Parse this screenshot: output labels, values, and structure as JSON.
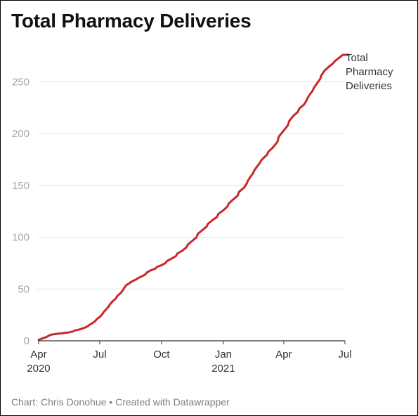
{
  "chart_data": {
    "type": "line",
    "title": "Total Pharmacy Deliveries",
    "xlabel": "",
    "ylabel": "",
    "ylim": [
      0,
      276
    ],
    "yticks": [
      0,
      50,
      100,
      150,
      200,
      250
    ],
    "grid": true,
    "legend_placement": "end-of-line label",
    "x_range": [
      "2020-03-31",
      "2021-07-01"
    ],
    "x_ticks": [
      {
        "date": "2020-04-01",
        "label": "Apr",
        "sub": "2020"
      },
      {
        "date": "2020-07-01",
        "label": "Jul",
        "sub": ""
      },
      {
        "date": "2020-10-01",
        "label": "Oct",
        "sub": ""
      },
      {
        "date": "2021-01-01",
        "label": "Jan",
        "sub": "2021"
      },
      {
        "date": "2021-04-01",
        "label": "Apr",
        "sub": ""
      },
      {
        "date": "2021-07-01",
        "label": "Jul",
        "sub": ""
      }
    ],
    "series": [
      {
        "name": "Total Pharmacy Deliveries",
        "color": "#c7282a",
        "x": [
          "2020-04-01",
          "2020-04-10",
          "2020-04-20",
          "2020-05-01",
          "2020-05-15",
          "2020-06-01",
          "2020-06-10",
          "2020-06-20",
          "2020-07-01",
          "2020-07-10",
          "2020-07-20",
          "2020-08-01",
          "2020-08-10",
          "2020-08-20",
          "2020-09-01",
          "2020-09-15",
          "2020-10-01",
          "2020-10-15",
          "2020-11-01",
          "2020-11-15",
          "2020-12-01",
          "2020-12-15",
          "2021-01-01",
          "2021-01-15",
          "2021-02-01",
          "2021-02-10",
          "2021-02-20",
          "2021-03-01",
          "2021-03-15",
          "2021-04-01",
          "2021-04-15",
          "2021-05-01",
          "2021-05-10",
          "2021-05-20",
          "2021-06-01",
          "2021-06-10",
          "2021-06-20",
          "2021-06-28"
        ],
        "values": [
          1,
          3,
          6,
          7,
          8,
          11,
          13,
          17,
          23,
          30,
          38,
          46,
          54,
          58,
          62,
          68,
          73,
          79,
          87,
          96,
          107,
          116,
          126,
          136,
          148,
          158,
          168,
          176,
          186,
          203,
          217,
          228,
          238,
          248,
          261,
          266,
          272,
          276
        ]
      }
    ],
    "footer": "Chart: Chris Donohue • Created with Datawrapper"
  }
}
